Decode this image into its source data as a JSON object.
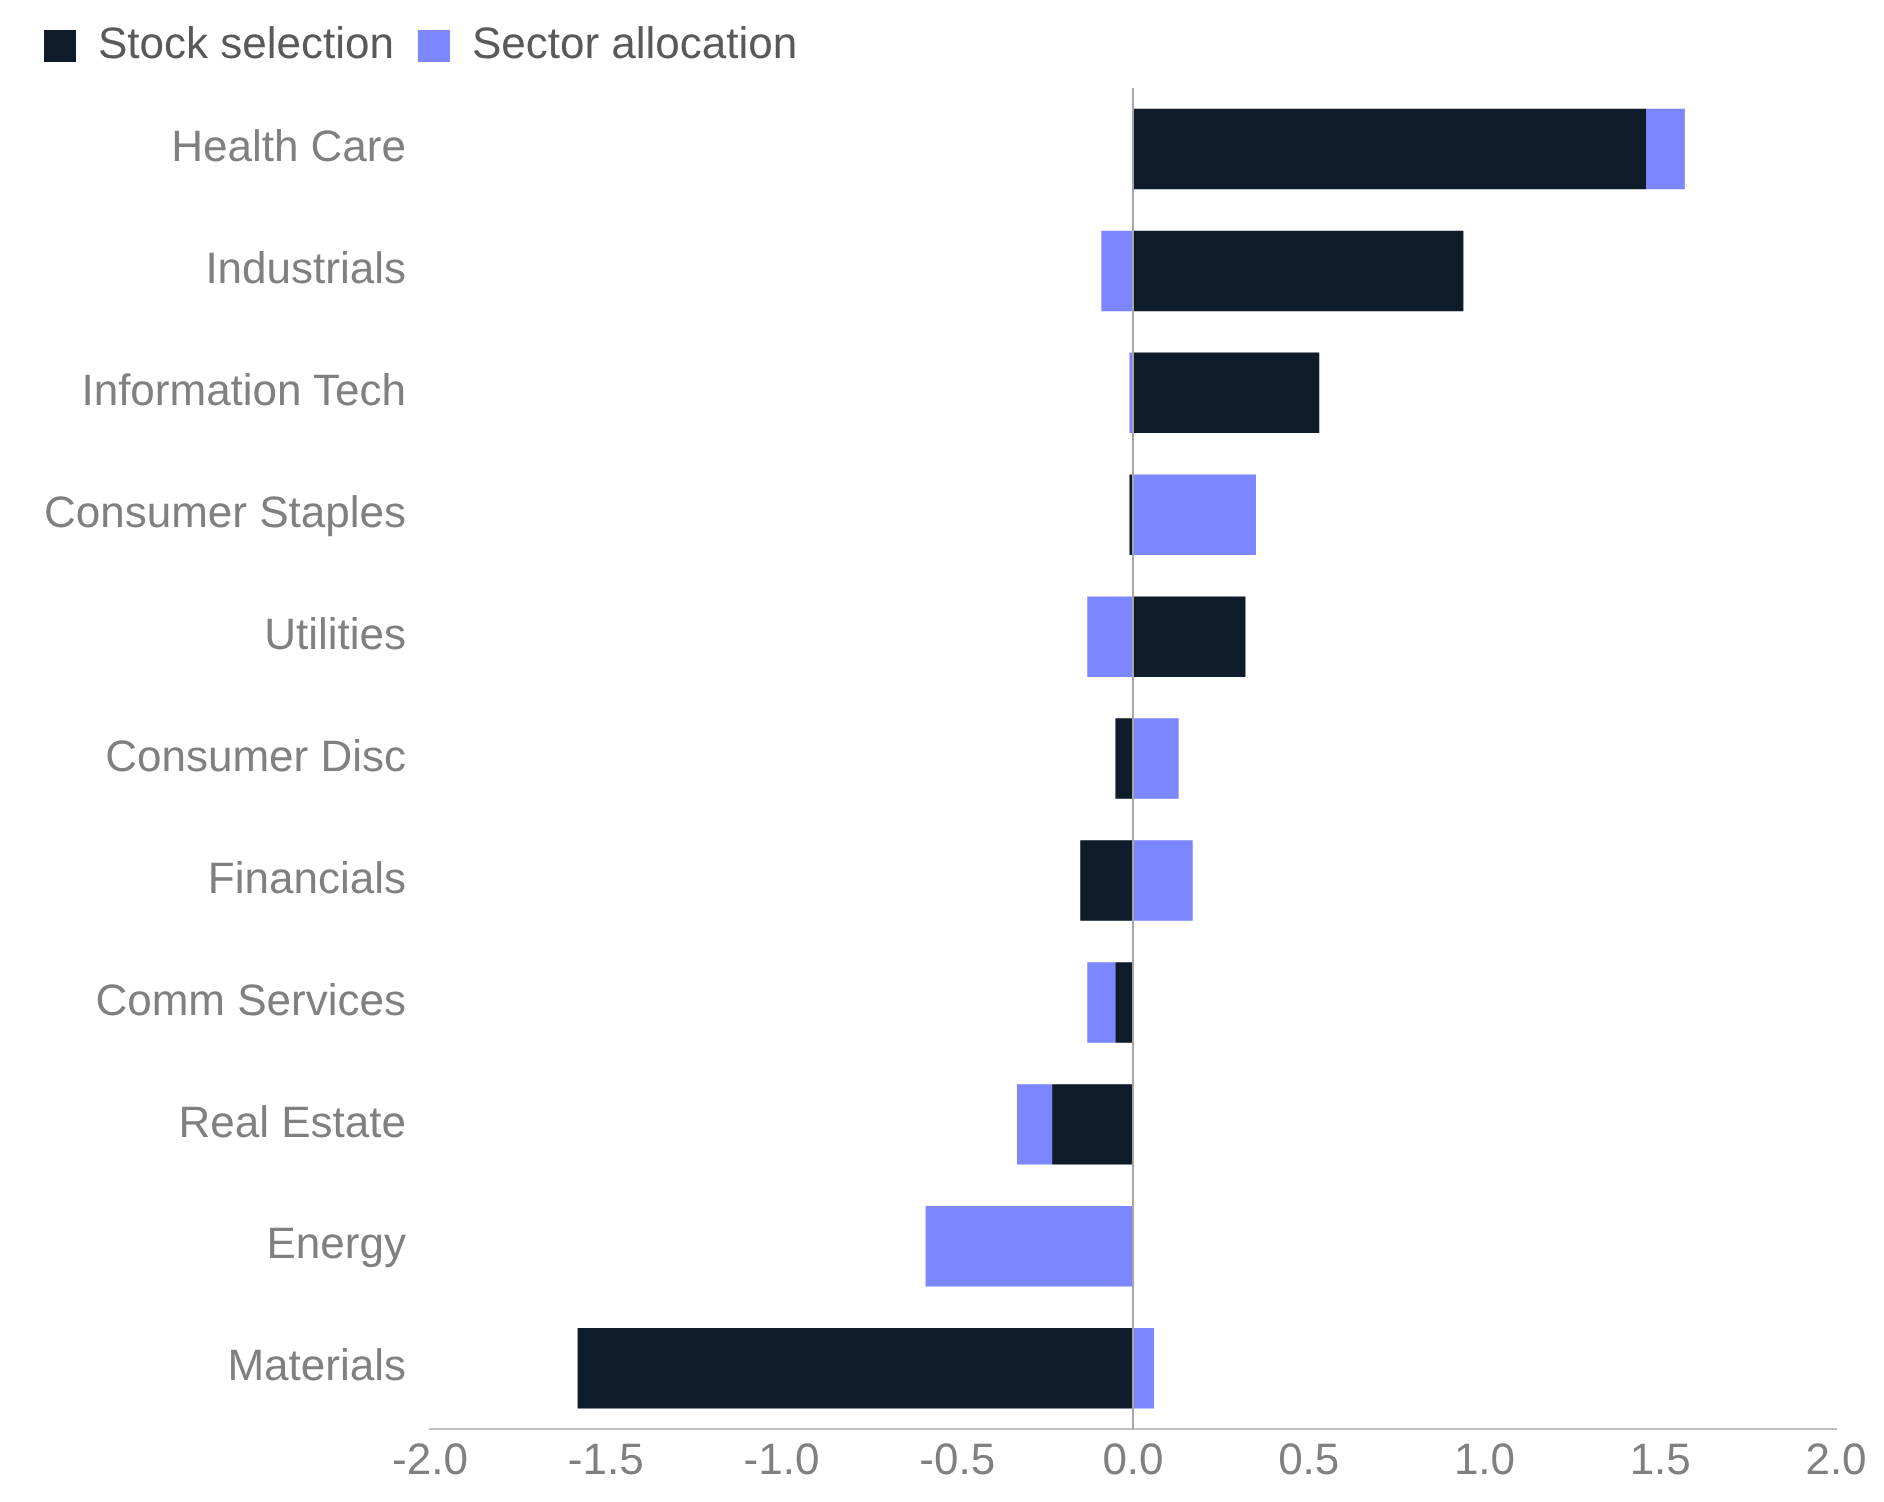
{
  "chart_data": {
    "type": "bar",
    "orientation": "horizontal",
    "stacked": true,
    "legend": "top left",
    "categories": [
      "Health Care",
      "Industrials",
      "Information Tech",
      "Consumer Staples",
      "Utilities",
      "Consumer Disc",
      "Financials",
      "Comm Services",
      "Real Estate",
      "Energy",
      "Materials"
    ],
    "series": [
      {
        "name": "Stock selection",
        "color": "#0d1b2a",
        "values": [
          1.46,
          0.94,
          0.53,
          -0.01,
          0.32,
          -0.05,
          -0.15,
          -0.05,
          -0.23,
          0,
          -1.58
        ]
      },
      {
        "name": "Sector allocation",
        "color": "#7b86ff",
        "values": [
          0.11,
          -0.09,
          -0.01,
          0.35,
          -0.13,
          0.13,
          0.17,
          -0.08,
          -0.1,
          -0.59,
          0.06
        ]
      }
    ],
    "xlim": [
      -2,
      2
    ],
    "xticks": [
      {
        "value": -2,
        "label": "-2.0"
      },
      {
        "value": -1.5,
        "label": "-1.5"
      },
      {
        "value": -1,
        "label": "-1.0"
      },
      {
        "value": -0.5,
        "label": "-0.5"
      },
      {
        "value": 0,
        "label": "0.0"
      },
      {
        "value": 0.5,
        "label": "0.5"
      },
      {
        "value": 1,
        "label": "1.0"
      },
      {
        "value": 1.5,
        "label": "1.5"
      },
      {
        "value": 2,
        "label": "2.0"
      }
    ]
  }
}
